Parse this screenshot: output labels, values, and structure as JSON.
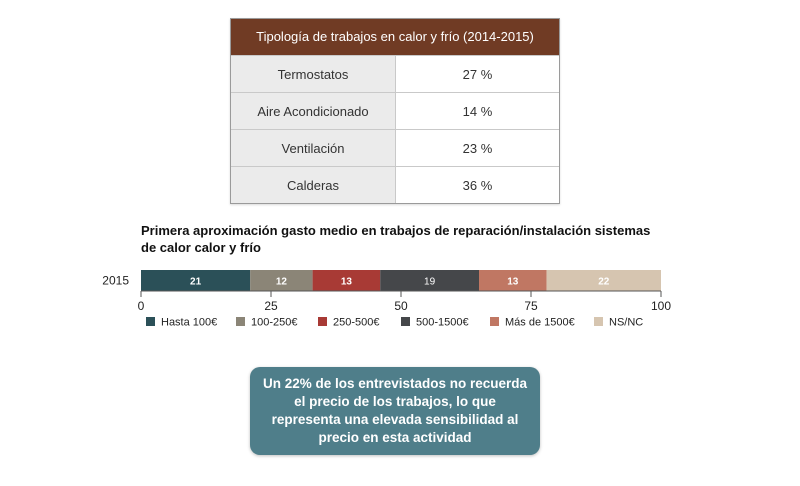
{
  "table": {
    "title": "Tipología de trabajos en calor y frío (2014-2015)",
    "header_color": "#703b24",
    "rows": [
      {
        "label": "Termostatos",
        "value": "27 %"
      },
      {
        "label": "Aire Acondicionado",
        "value": "14 %"
      },
      {
        "label": "Ventilación",
        "value": "23 %"
      },
      {
        "label": "Calderas",
        "value": "36 %"
      }
    ]
  },
  "callout": {
    "text": "Un 22% de los entrevistados no recuerda el precio de los trabajos, lo que representa una elevada sensibilidad al precio en esta actividad",
    "color": "#4f7e8a"
  },
  "chart_data": {
    "type": "bar",
    "orientation": "horizontal",
    "stacked": true,
    "title": "Primera aproximación gasto medio en trabajos de reparación/instalación sistemas de calor calor y frío",
    "categories": [
      "2015"
    ],
    "series": [
      {
        "name": "Hasta 100€",
        "values": [
          21
        ],
        "color": "#2b5058"
      },
      {
        "name": "100-250€",
        "values": [
          12
        ],
        "color": "#8b8577"
      },
      {
        "name": "250-500€",
        "values": [
          13
        ],
        "color": "#a83a35"
      },
      {
        "name": "500-1500€",
        "values": [
          19
        ],
        "color": "#45474a"
      },
      {
        "name": "Más de 1500€",
        "values": [
          13
        ],
        "color": "#c07763"
      },
      {
        "name": "NS/NC",
        "values": [
          22
        ],
        "color": "#d6c5b0"
      }
    ],
    "xlim": [
      0,
      100
    ],
    "xticks": [
      0,
      25,
      50,
      75,
      100
    ],
    "legend_position": "bottom",
    "grid": false
  }
}
